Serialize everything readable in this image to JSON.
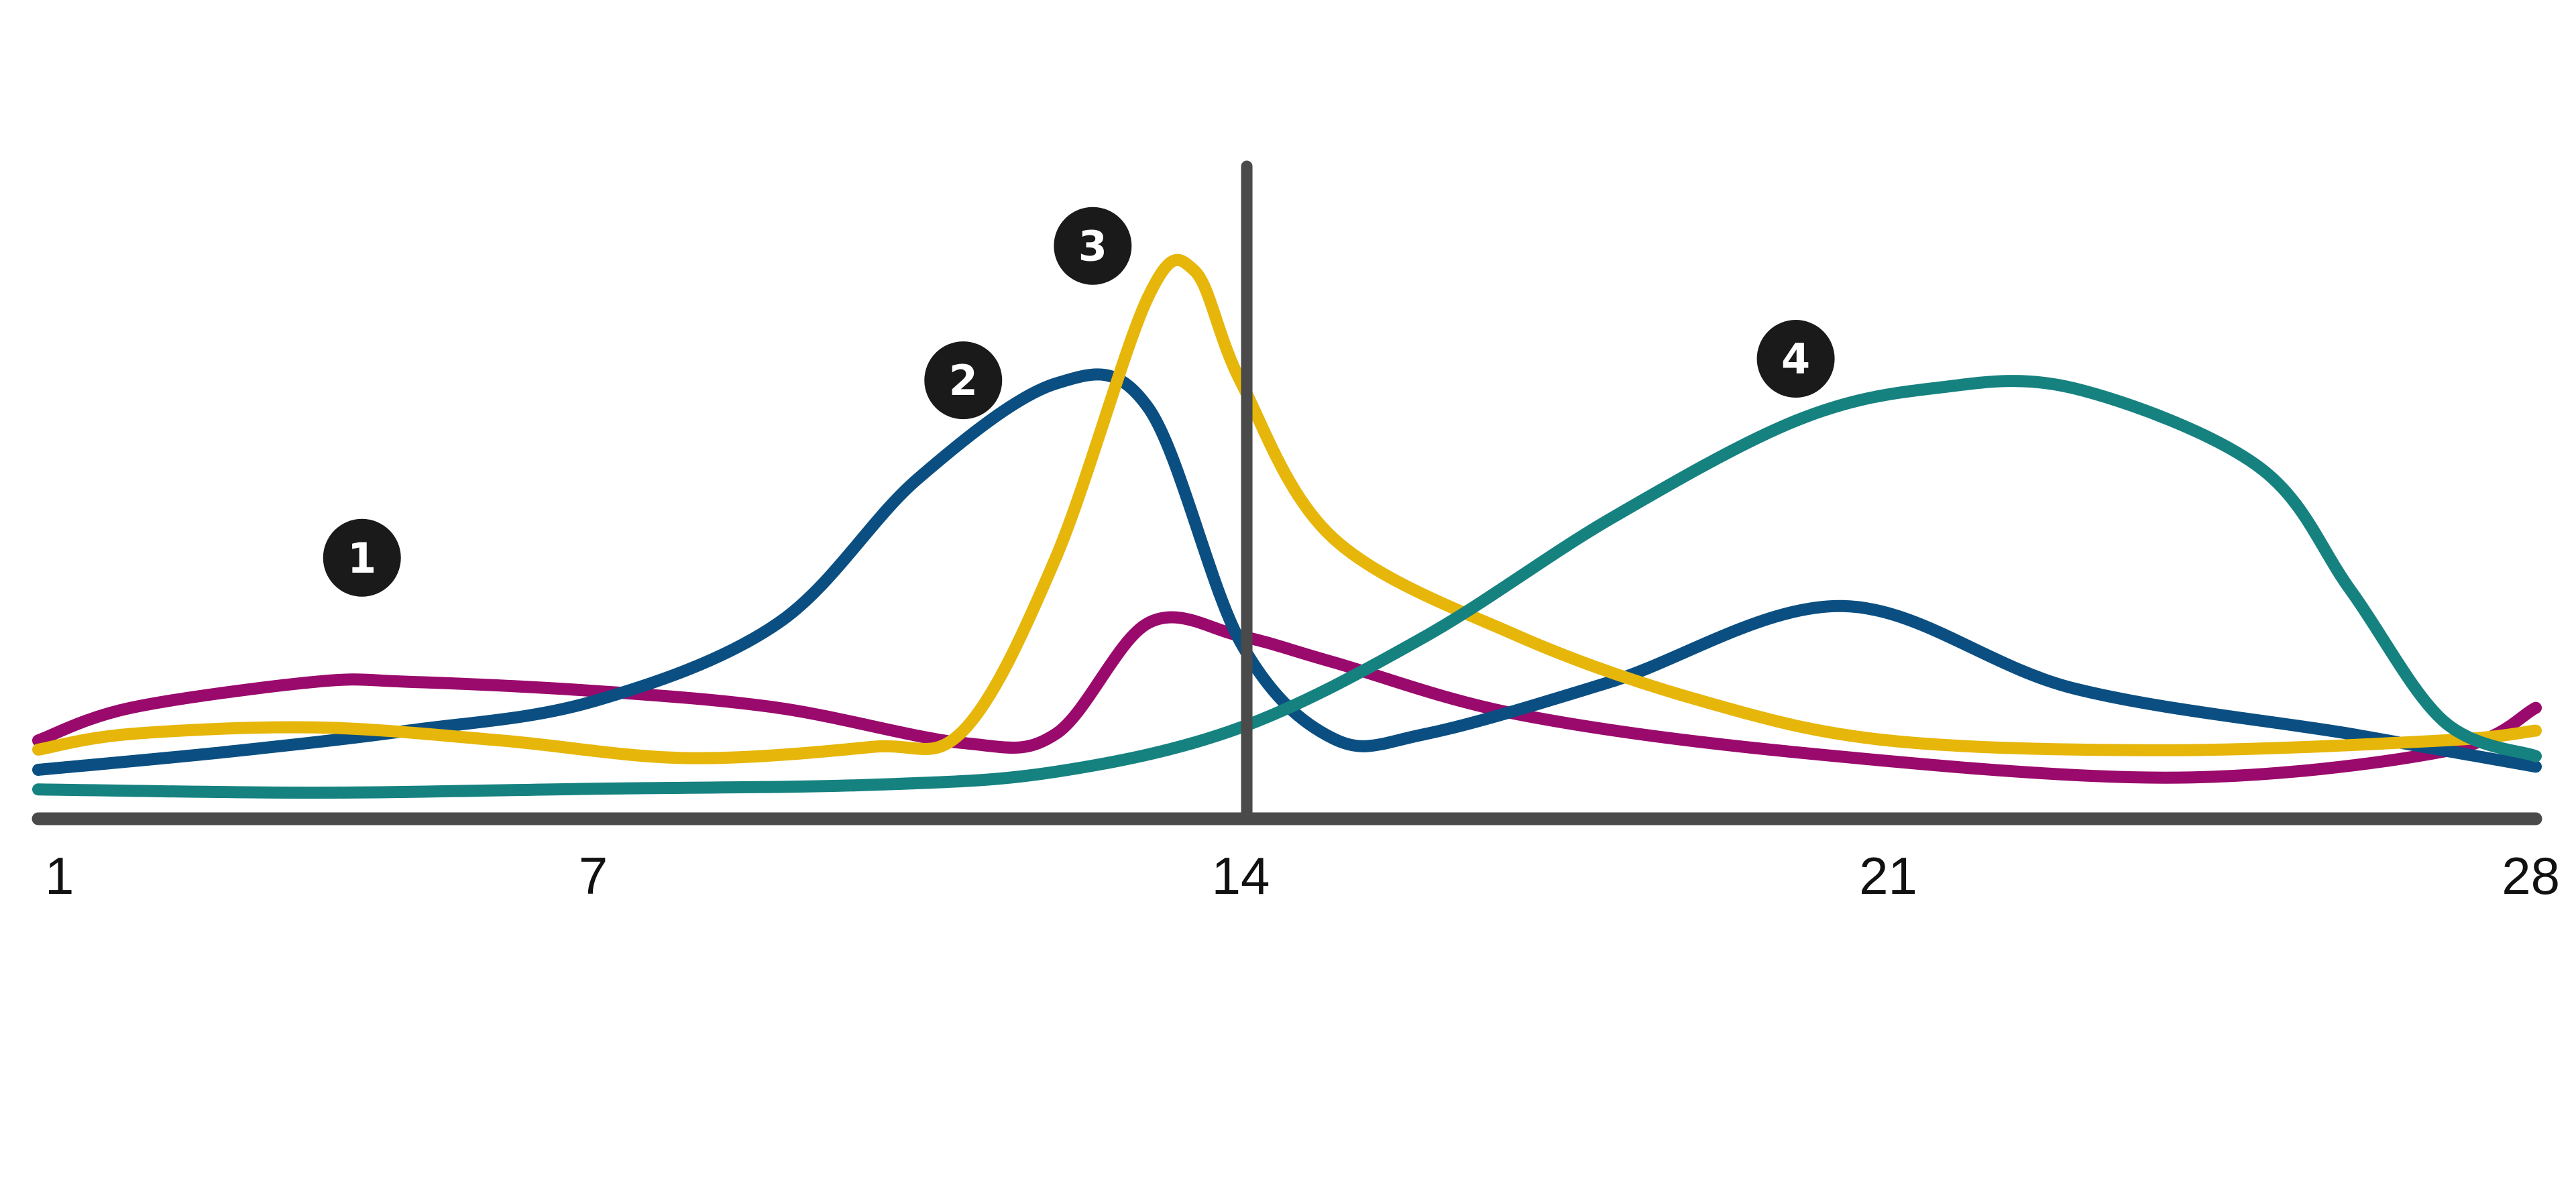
{
  "chart_data": {
    "type": "line",
    "title": "",
    "xlabel": "",
    "ylabel": "",
    "x_ticks": [
      "1",
      "7",
      "14",
      "21",
      "28"
    ],
    "xlim": [
      1,
      28
    ],
    "ylim": [
      0,
      100
    ],
    "grid": false,
    "reference_line_x": 14,
    "axis_color": "#4a4a4a",
    "series": [
      {
        "color": "#9a0a6c",
        "points": [
          [
            1,
            12
          ],
          [
            2,
            17
          ],
          [
            4,
            21
          ],
          [
            5,
            21
          ],
          [
            7,
            19.6
          ],
          [
            9,
            17
          ],
          [
            11,
            11.6
          ],
          [
            12,
            13
          ],
          [
            13,
            30
          ],
          [
            14,
            28
          ],
          [
            15,
            24
          ],
          [
            17,
            16
          ],
          [
            20,
            10.2
          ],
          [
            24,
            6.3
          ],
          [
            27,
            10.3
          ],
          [
            28,
            17
          ]
        ]
      },
      {
        "color": "#0b4f82",
        "points": [
          [
            1,
            7.5
          ],
          [
            3,
            10.2
          ],
          [
            5,
            13.5
          ],
          [
            7,
            18
          ],
          [
            9,
            30
          ],
          [
            10.5,
            52
          ],
          [
            12,
            66.7
          ],
          [
            13,
            63
          ],
          [
            14,
            27
          ],
          [
            15,
            12.3
          ],
          [
            16,
            13
          ],
          [
            18,
            21
          ],
          [
            20.5,
            32.6
          ],
          [
            23,
            20
          ],
          [
            26,
            13
          ],
          [
            28,
            8
          ]
        ]
      },
      {
        "color": "#e6b60a",
        "points": [
          [
            1,
            10.6
          ],
          [
            2,
            13
          ],
          [
            4,
            14
          ],
          [
            6,
            12
          ],
          [
            8,
            9.3
          ],
          [
            10,
            11
          ],
          [
            11,
            13.5
          ],
          [
            12,
            40
          ],
          [
            13,
            80
          ],
          [
            13.5,
            84
          ],
          [
            14,
            67
          ],
          [
            15,
            43
          ],
          [
            17,
            28
          ],
          [
            19,
            18
          ],
          [
            21,
            12
          ],
          [
            24,
            10.5
          ],
          [
            27,
            12
          ],
          [
            28,
            13.5
          ]
        ]
      },
      {
        "color": "#168280",
        "points": [
          [
            1,
            4.5
          ],
          [
            4,
            4
          ],
          [
            7,
            4.6
          ],
          [
            10,
            5.2
          ],
          [
            12,
            7.2
          ],
          [
            14,
            14
          ],
          [
            16,
            28
          ],
          [
            18,
            46
          ],
          [
            20,
            61
          ],
          [
            21.5,
            66
          ],
          [
            23,
            66
          ],
          [
            25,
            54
          ],
          [
            26,
            35
          ],
          [
            27,
            15
          ],
          [
            28,
            9.6
          ]
        ]
      }
    ],
    "annotations": [
      {
        "text": "1",
        "x": 4.5,
        "y": 40
      },
      {
        "text": "2",
        "x": 11,
        "y": 67.2
      },
      {
        "text": "3",
        "x": 12.4,
        "y": 87.8
      },
      {
        "text": "4",
        "x": 20,
        "y": 70.5
      }
    ]
  }
}
